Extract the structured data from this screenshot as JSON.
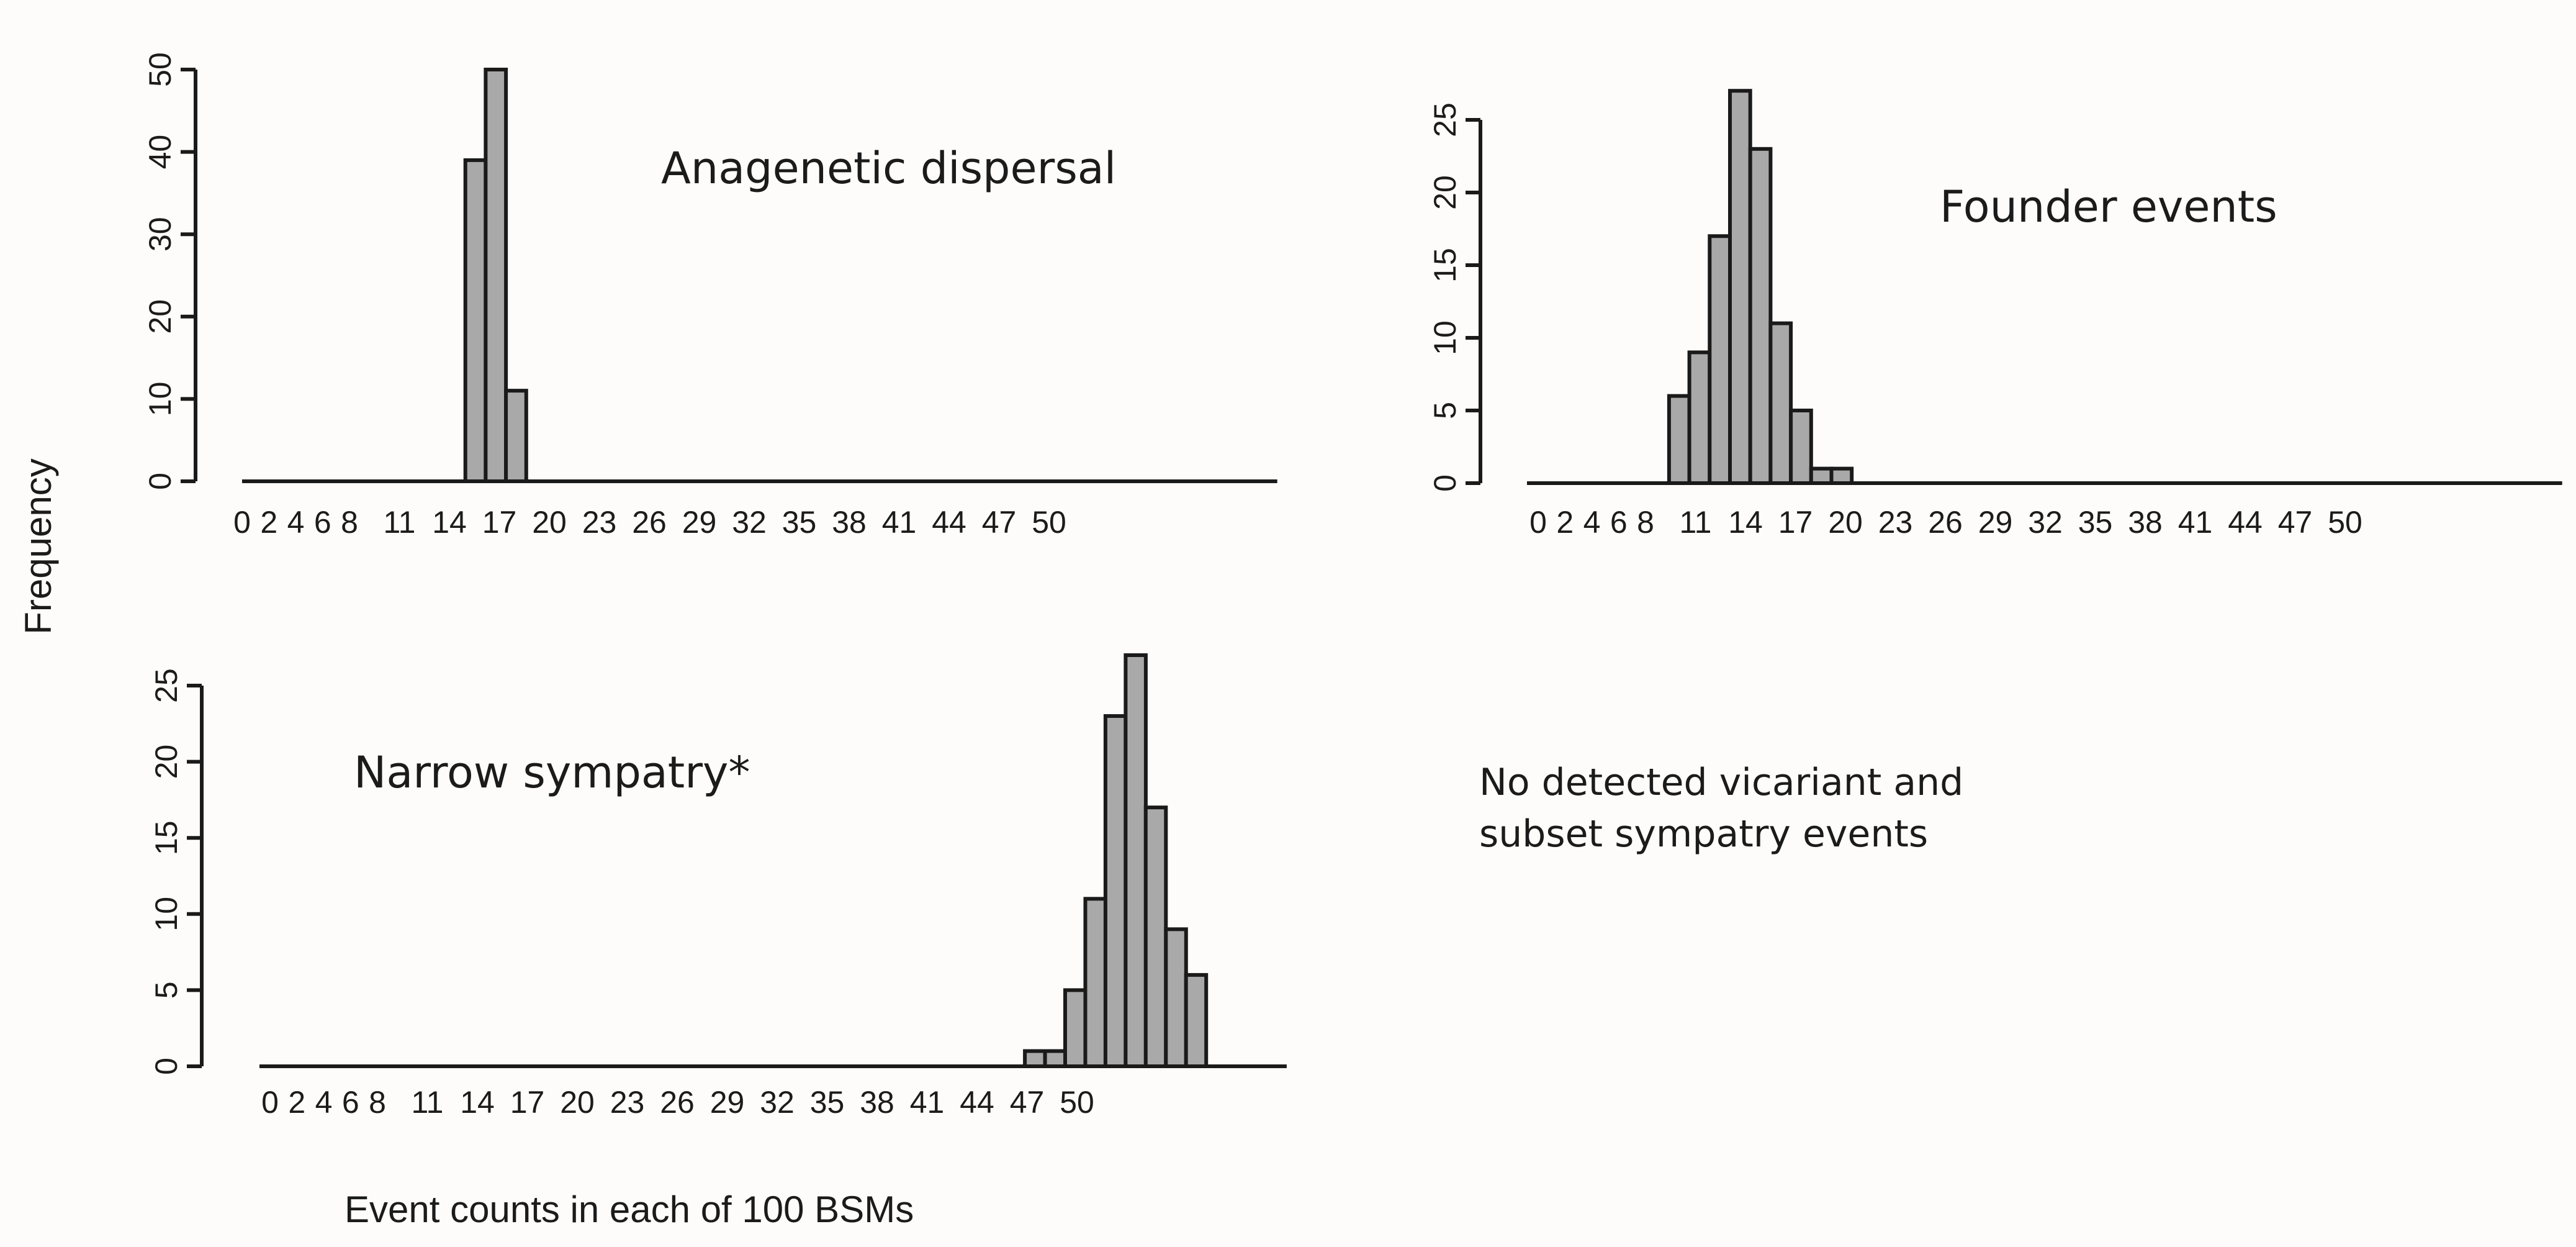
{
  "figure": {
    "ylabel": "Frequency",
    "xlabel": "Event counts in each of 100 BSMs",
    "note": [
      "No detected vicariant and",
      "subset sympatry events"
    ]
  },
  "chart_data": [
    {
      "type": "bar",
      "title": "Anagenetic dispersal",
      "xlabel": "Event counts in each of 100 BSMs",
      "ylabel": "Frequency",
      "tick_labels": [
        "0",
        "2",
        "4",
        "6",
        "8",
        "11",
        "14",
        "17",
        "20",
        "23",
        "26",
        "29",
        "32",
        "35",
        "38",
        "41",
        "44",
        "47",
        "50"
      ],
      "categories": [
        0,
        1,
        2,
        3,
        4,
        5,
        6,
        7,
        8,
        9,
        10,
        11,
        12,
        13,
        14,
        15,
        16,
        17,
        18,
        19,
        20,
        21,
        22,
        23,
        24,
        25,
        26,
        27,
        28,
        29,
        30,
        31,
        32,
        33,
        34,
        35,
        36,
        37,
        38,
        39,
        40,
        41,
        42,
        43,
        44,
        45,
        46,
        47,
        48,
        49,
        50
      ],
      "values": [
        0,
        0,
        0,
        0,
        0,
        0,
        0,
        0,
        0,
        0,
        0,
        39,
        50,
        11,
        0,
        0,
        0,
        0,
        0,
        0,
        0,
        0,
        0,
        0,
        0,
        0,
        0,
        0,
        0,
        0,
        0,
        0,
        0,
        0,
        0,
        0,
        0,
        0,
        0,
        0,
        0,
        0,
        0,
        0,
        0,
        0,
        0,
        0,
        0,
        0,
        0
      ],
      "yticks": [
        0,
        10,
        20,
        30,
        40,
        50
      ],
      "ylim": [
        0,
        50
      ]
    },
    {
      "type": "bar",
      "title": "Founder events",
      "xlabel": "Event counts in each of 100 BSMs",
      "ylabel": "Frequency",
      "tick_labels": [
        "0",
        "2",
        "4",
        "6",
        "8",
        "11",
        "14",
        "17",
        "20",
        "23",
        "26",
        "29",
        "32",
        "35",
        "38",
        "41",
        "44",
        "47",
        "50"
      ],
      "categories": [
        0,
        1,
        2,
        3,
        4,
        5,
        6,
        7,
        8,
        9,
        10,
        11,
        12,
        13,
        14,
        15,
        16,
        17,
        18,
        19,
        20,
        21,
        22,
        23,
        24,
        25,
        26,
        27,
        28,
        29,
        30,
        31,
        32,
        33,
        34,
        35,
        36,
        37,
        38,
        39,
        40,
        41,
        42,
        43,
        44,
        45,
        46,
        47,
        48,
        49,
        50
      ],
      "values": [
        0,
        0,
        0,
        0,
        0,
        0,
        0,
        6,
        9,
        17,
        27,
        23,
        11,
        5,
        1,
        1,
        0,
        0,
        0,
        0,
        0,
        0,
        0,
        0,
        0,
        0,
        0,
        0,
        0,
        0,
        0,
        0,
        0,
        0,
        0,
        0,
        0,
        0,
        0,
        0,
        0,
        0,
        0,
        0,
        0,
        0,
        0,
        0,
        0,
        0,
        0
      ],
      "yticks": [
        0,
        5,
        10,
        15,
        20,
        25
      ],
      "ylim": [
        0,
        25
      ]
    },
    {
      "type": "bar",
      "title": "Narrow sympatry*",
      "xlabel": "Event counts in each of 100 BSMs",
      "ylabel": "Frequency",
      "tick_labels": [
        "0",
        "2",
        "4",
        "6",
        "8",
        "11",
        "14",
        "17",
        "20",
        "23",
        "26",
        "29",
        "32",
        "35",
        "38",
        "41",
        "44",
        "47",
        "50"
      ],
      "categories": [
        0,
        1,
        2,
        3,
        4,
        5,
        6,
        7,
        8,
        9,
        10,
        11,
        12,
        13,
        14,
        15,
        16,
        17,
        18,
        19,
        20,
        21,
        22,
        23,
        24,
        25,
        26,
        27,
        28,
        29,
        30,
        31,
        32,
        33,
        34,
        35,
        36,
        37,
        38,
        39,
        40,
        41,
        42,
        43,
        44,
        45,
        46,
        47,
        48,
        49,
        50
      ],
      "values": [
        0,
        0,
        0,
        0,
        0,
        0,
        0,
        0,
        0,
        0,
        0,
        0,
        0,
        0,
        0,
        0,
        0,
        0,
        0,
        0,
        0,
        0,
        0,
        0,
        0,
        0,
        0,
        0,
        0,
        0,
        0,
        0,
        0,
        0,
        0,
        0,
        0,
        0,
        1,
        1,
        5,
        11,
        23,
        27,
        17,
        9,
        6,
        0,
        0,
        0,
        0
      ],
      "yticks": [
        0,
        5,
        10,
        15,
        20,
        25
      ],
      "ylim": [
        0,
        25
      ]
    }
  ]
}
